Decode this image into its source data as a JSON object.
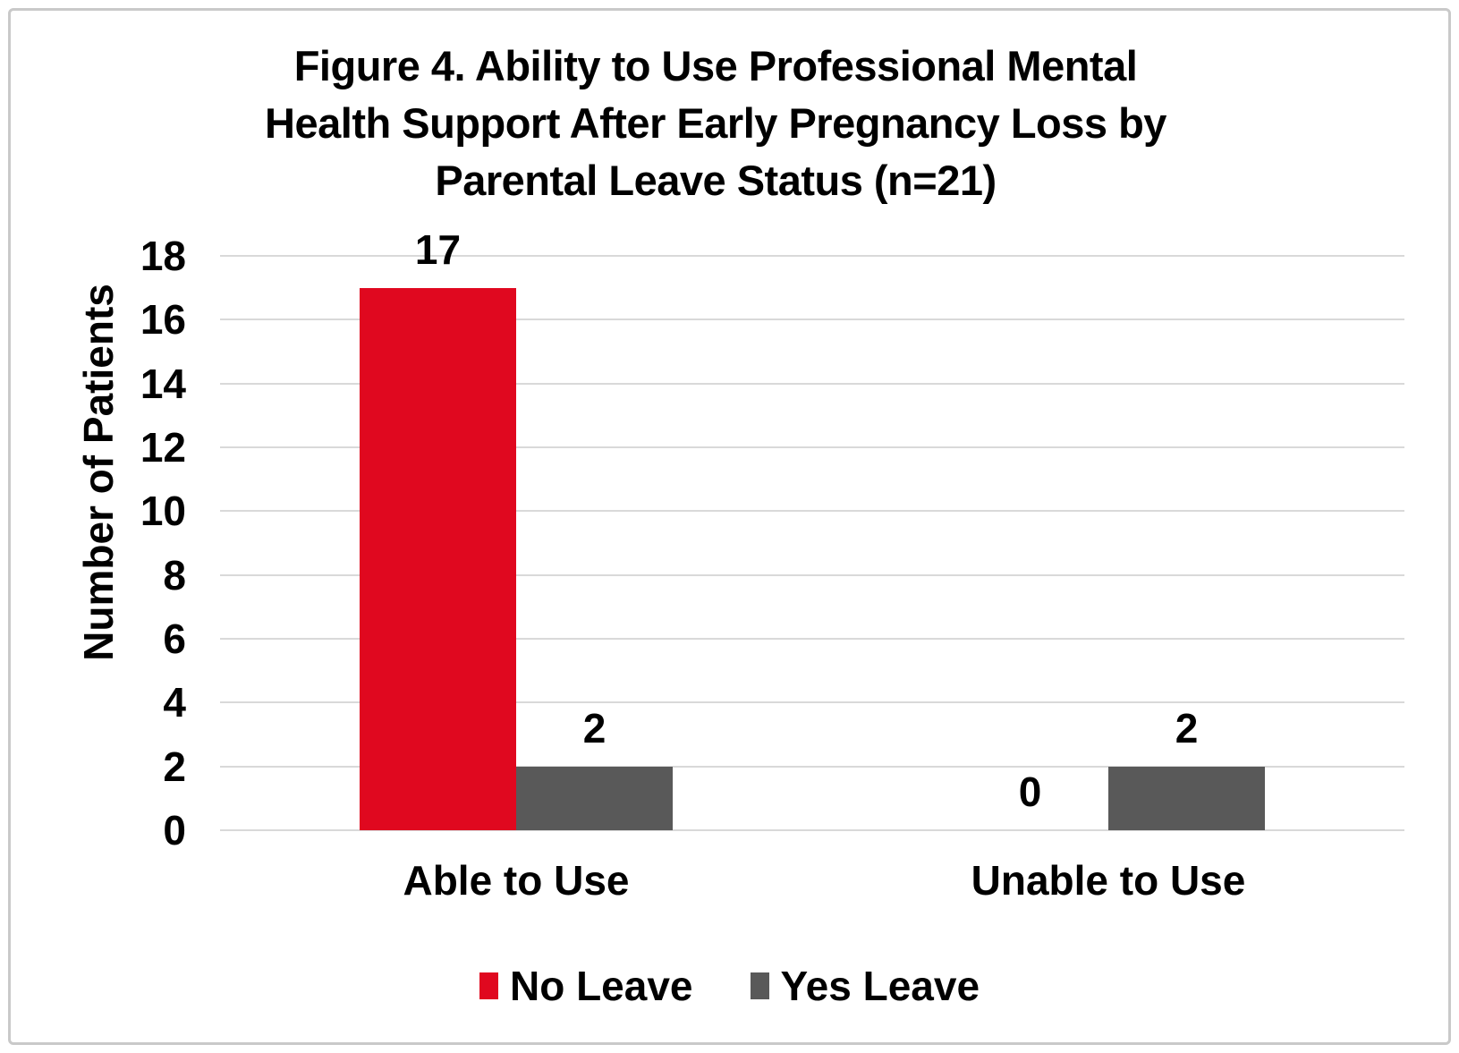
{
  "figure": {
    "title_lines": [
      "Figure 4. Ability to Use Professional Mental",
      "Health Support After Early Pregnancy Loss by",
      "Parental Leave Status (n=21)"
    ]
  },
  "chart_data": {
    "type": "bar",
    "title": "Figure 4. Ability to Use Professional Mental Health Support After Early Pregnancy Loss by Parental Leave Status (n=21)",
    "categories": [
      "Able to Use",
      "Unable to Use"
    ],
    "series": [
      {
        "name": "No Leave",
        "color": "#E0081F",
        "values": [
          17,
          0
        ]
      },
      {
        "name": "Yes Leave",
        "color": "#595959",
        "values": [
          2,
          2
        ]
      }
    ],
    "xlabel": "",
    "ylabel": "Number of Patients",
    "ylim": [
      0,
      18
    ],
    "yticks": [
      0,
      2,
      4,
      6,
      8,
      10,
      12,
      14,
      16,
      18
    ],
    "grid": true,
    "show_data_labels": true,
    "legend_position": "bottom"
  },
  "colors": {
    "background": "#FFFFFF",
    "gridline": "#D9D9D9",
    "frame_border": "#C9C9C9",
    "text": "#000000",
    "series_no_leave": "#E0081F",
    "series_yes_leave": "#595959"
  }
}
